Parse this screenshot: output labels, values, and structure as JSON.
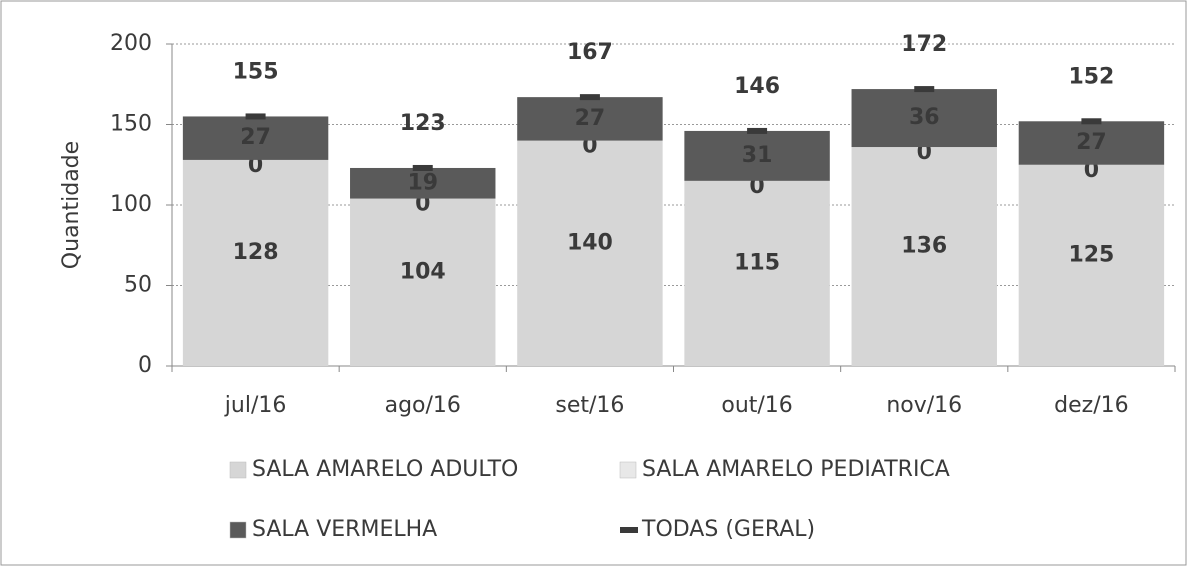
{
  "chart_data": {
    "type": "bar",
    "stacked": true,
    "ylabel": "Quantidade",
    "categories": [
      "jul/16",
      "ago/16",
      "set/16",
      "out/16",
      "nov/16",
      "dez/16"
    ],
    "series": [
      {
        "name": "SALA AMARELO ADULTO",
        "color": "#d6d6d6",
        "values": [
          128,
          104,
          140,
          115,
          136,
          125
        ]
      },
      {
        "name": "SALA AMARELO PEDIATRICA",
        "color": "#e8e8e8",
        "values": [
          0,
          0,
          0,
          0,
          0,
          0
        ]
      },
      {
        "name": "SALA VERMELHA",
        "color": "#5a5a5a",
        "values": [
          27,
          19,
          27,
          31,
          36,
          27
        ]
      },
      {
        "name": "TODAS (GERAL)",
        "type": "line",
        "color": "#3a3a3a",
        "values": [
          155,
          123,
          167,
          146,
          172,
          152
        ]
      }
    ],
    "ylim": [
      0,
      200
    ],
    "yticks": [
      0,
      50,
      100,
      150,
      200
    ],
    "grid": true,
    "legend": "bottom"
  }
}
